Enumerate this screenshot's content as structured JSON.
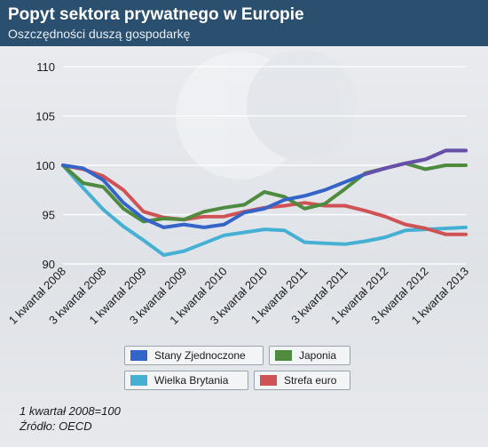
{
  "header": {
    "title": "Popyt sektora prywatnego w Europie",
    "subtitle": "Oszczędności duszą gospodarkę"
  },
  "chart_data": {
    "type": "line",
    "title": "Popyt sektora prywatnego w Europie",
    "subtitle": "Oszczędności duszą gospodarkę",
    "xlabel": "",
    "ylabel": "",
    "ylim": [
      90,
      110
    ],
    "yticks": [
      90,
      95,
      100,
      105,
      110
    ],
    "grid": true,
    "legend_position": "bottom",
    "categories": [
      "1 kwartał 2008",
      "",
      "3 kwartał 2008",
      "",
      "1 kwartał 2009",
      "",
      "3 kwartał 2009",
      "",
      "1 kwartał 2010",
      "",
      "3 kwartał 2010",
      "",
      "1 kwartał 2011",
      "",
      "3 kwartał 2011",
      "",
      "1 kwartał 2012",
      "",
      "3 kwartał 2012",
      "",
      "1 kwartał 2013"
    ],
    "tick_labels": [
      "1 kwartał 2008",
      "3 kwartał 2008",
      "1 kwartał 2009",
      "3 kwartał 2009",
      "1 kwartał 2010",
      "3 kwartał 2010",
      "1 kwartał 2011",
      "3 kwartał 2011",
      "1 kwartał 2012",
      "3 kwartał 2012",
      "1 kwartał 2013"
    ],
    "series": [
      {
        "name": "Stany Zjednoczone",
        "color": "#3464c8",
        "values": [
          100,
          99.7,
          98.5,
          96.2,
          94.6,
          93.7,
          94.0,
          93.7,
          94.0,
          95.2,
          95.6,
          96.5,
          96.9,
          97.5,
          98.3,
          99.1,
          99.7,
          100.2,
          100.6,
          101.5,
          101.5
        ]
      },
      {
        "name": "Japonia",
        "color": "#4e8b3f",
        "values": [
          100,
          98.2,
          97.8,
          95.6,
          94.3,
          94.6,
          94.5,
          95.3,
          95.7,
          96.0,
          97.3,
          96.8,
          95.6,
          96.1,
          97.6,
          99.2,
          99.7,
          100.2,
          99.6,
          100.0,
          100.0
        ]
      },
      {
        "name": "Wielka Brytania",
        "color": "#45b0d4",
        "values": [
          100,
          97.7,
          95.5,
          93.8,
          92.4,
          90.9,
          91.3,
          92.1,
          92.9,
          93.2,
          93.5,
          93.4,
          92.2,
          92.1,
          92.0,
          92.3,
          92.7,
          93.4,
          93.5,
          93.6,
          93.7
        ]
      },
      {
        "name": "Strefa euro",
        "color": "#cf5355",
        "values": [
          100,
          99.6,
          98.9,
          97.5,
          95.3,
          94.7,
          94.5,
          94.8,
          94.8,
          95.3,
          95.7,
          95.9,
          96.2,
          95.9,
          95.9,
          95.4,
          94.8,
          94.0,
          93.6,
          93.0,
          93.0
        ]
      }
    ]
  },
  "footnote": {
    "base": "1 kwartał 2008=100",
    "source": "Źródło: OECD"
  }
}
